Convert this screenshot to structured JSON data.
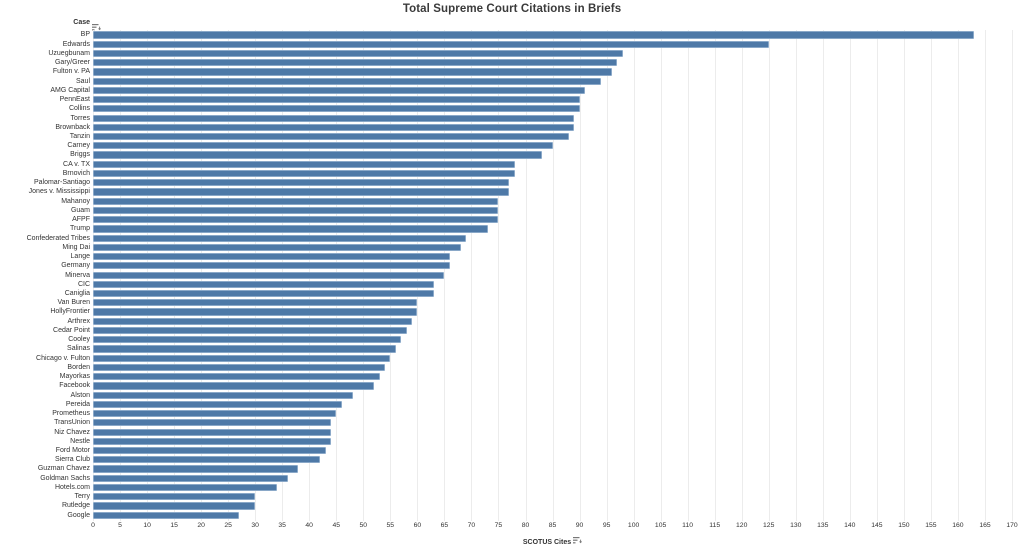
{
  "title": "Total Supreme Court Citations in Briefs",
  "row_axis": {
    "header": "Case",
    "sort_icon": "sort-descending-icon"
  },
  "x_axis": {
    "label": "SCOTUS Cites",
    "sort_icon": "sort-descending-icon",
    "min": 0,
    "max": 170,
    "tick_step": 5,
    "ticks": [
      0,
      5,
      10,
      15,
      20,
      25,
      30,
      35,
      40,
      45,
      50,
      55,
      60,
      65,
      70,
      75,
      80,
      85,
      90,
      95,
      100,
      105,
      110,
      115,
      120,
      125,
      130,
      135,
      140,
      145,
      150,
      155,
      160,
      165,
      170
    ]
  },
  "colors": {
    "bar": "#4e79a7",
    "gridline": "#ececec",
    "text": "#333333",
    "title_text": "#3b3b3b",
    "icon": "#787878"
  },
  "chart_data": {
    "type": "bar",
    "orientation": "horizontal",
    "title": "Total Supreme Court Citations in Briefs",
    "xlabel": "SCOTUS Cites",
    "ylabel": "Case",
    "xlim": [
      0,
      170
    ],
    "grid": true,
    "legend": false,
    "sort": "descending",
    "categories": [
      "BP",
      "Edwards",
      "Uzuegbunam",
      "Gary/Greer",
      "Fulton v. PA",
      "Saul",
      "AMG Capital",
      "PennEast",
      "Collins",
      "Torres",
      "Brownback",
      "Tanzin",
      "Carney",
      "Briggs",
      "CA v. TX",
      "Brnovich",
      "Palomar-Santiago",
      "Jones v. Mississippi",
      "Mahanoy",
      "Guam",
      "AFPF",
      "Trump",
      "Confederated Tribes",
      "Ming Dai",
      "Lange",
      "Germany",
      "Minerva",
      "CIC",
      "Caniglia",
      "Van Buren",
      "HollyFrontier",
      "Arthrex",
      "Cedar Point",
      "Cooley",
      "Salinas",
      "Chicago v. Fulton",
      "Borden",
      "Mayorkas",
      "Facebook",
      "Alston",
      "Pereida",
      "Prometheus",
      "TransUnion",
      "Niz Chavez",
      "Nestle",
      "Ford Motor",
      "Sierra Club",
      "Guzman Chavez",
      "Goldman Sachs",
      "Hotels.com",
      "Terry",
      "Rutledge",
      "Google"
    ],
    "values": [
      163,
      125,
      98,
      97,
      96,
      94,
      91,
      90,
      90,
      89,
      89,
      88,
      85,
      83,
      78,
      78,
      77,
      77,
      75,
      75,
      75,
      73,
      69,
      68,
      66,
      66,
      65,
      63,
      63,
      60,
      60,
      59,
      58,
      57,
      56,
      55,
      54,
      53,
      52,
      48,
      46,
      45,
      44,
      44,
      44,
      43,
      42,
      38,
      36,
      34,
      30,
      30,
      27
    ]
  }
}
